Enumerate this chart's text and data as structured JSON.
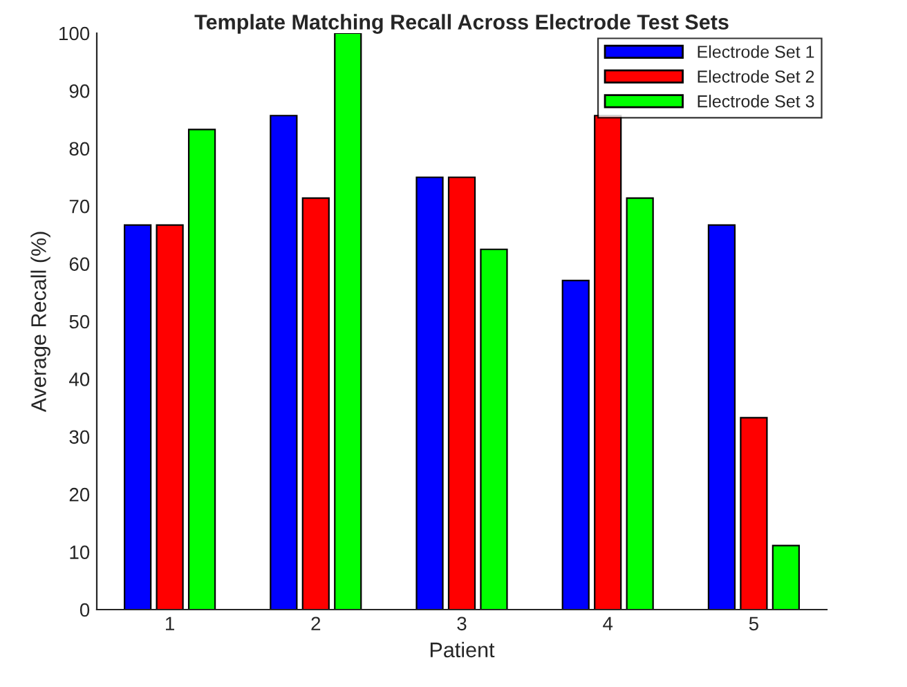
{
  "chart_data": {
    "type": "bar",
    "title": "Template Matching Recall Across Electrode Test Sets",
    "xlabel": "Patient",
    "ylabel": "Average Recall (%)",
    "categories": [
      "1",
      "2",
      "3",
      "4",
      "5"
    ],
    "series": [
      {
        "name": "Electrode Set 1",
        "color": "#0000ff",
        "values": [
          66.7,
          85.7,
          75,
          57.1,
          66.7
        ]
      },
      {
        "name": "Electrode Set 2",
        "color": "#ff0000",
        "values": [
          66.7,
          71.4,
          75,
          85.7,
          33.3
        ]
      },
      {
        "name": "Electrode Set 3",
        "color": "#00ff00",
        "values": [
          83.3,
          100,
          62.5,
          71.4,
          11.1
        ]
      }
    ],
    "ylim": [
      0,
      100
    ],
    "yticks": [
      0,
      10,
      20,
      30,
      40,
      50,
      60,
      70,
      80,
      90,
      100
    ],
    "grid": false,
    "legend": "top right"
  }
}
